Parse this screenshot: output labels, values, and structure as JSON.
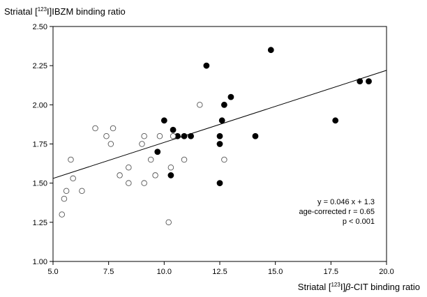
{
  "chart_data": {
    "type": "scatter",
    "ylabel_parts": {
      "pre": "Striatal [",
      "sup": "123",
      "post": "I]IBZM binding ratio"
    },
    "xlabel_parts": {
      "pre": "Striatal [",
      "sup": "123",
      "mid": "I]",
      "beta": "β",
      "post": "-CIT binding ratio"
    },
    "xlim": [
      5.0,
      20.0
    ],
    "ylim": [
      1.0,
      2.5
    ],
    "x_ticks": [
      "5.0",
      "7.5",
      "10.0",
      "12.5",
      "15.0",
      "17.5",
      "20.0"
    ],
    "y_ticks": [
      "1.00",
      "1.25",
      "1.50",
      "1.75",
      "2.00",
      "2.25",
      "2.50"
    ],
    "grid": false,
    "series": [
      {
        "marker": "filled",
        "points": [
          [
            10.0,
            1.9
          ],
          [
            10.4,
            1.84
          ],
          [
            9.7,
            1.7
          ],
          [
            10.3,
            1.55
          ],
          [
            10.6,
            1.8
          ],
          [
            10.9,
            1.8
          ],
          [
            11.2,
            1.8
          ],
          [
            11.9,
            2.25
          ],
          [
            12.5,
            1.8
          ],
          [
            12.5,
            1.75
          ],
          [
            12.6,
            1.9
          ],
          [
            12.7,
            2.0
          ],
          [
            13.0,
            2.05
          ],
          [
            12.5,
            1.5
          ],
          [
            14.1,
            1.8
          ],
          [
            14.8,
            2.35
          ],
          [
            17.7,
            1.9
          ],
          [
            18.8,
            2.15
          ],
          [
            19.2,
            2.15
          ]
        ]
      },
      {
        "marker": "open",
        "points": [
          [
            5.4,
            1.3
          ],
          [
            5.5,
            1.4
          ],
          [
            5.6,
            1.45
          ],
          [
            5.8,
            1.65
          ],
          [
            5.9,
            1.53
          ],
          [
            6.3,
            1.45
          ],
          [
            6.9,
            1.85
          ],
          [
            7.4,
            1.8
          ],
          [
            7.6,
            1.75
          ],
          [
            7.7,
            1.85
          ],
          [
            8.0,
            1.55
          ],
          [
            8.4,
            1.6
          ],
          [
            8.4,
            1.5
          ],
          [
            9.0,
            1.75
          ],
          [
            9.1,
            1.8
          ],
          [
            9.1,
            1.5
          ],
          [
            9.4,
            1.65
          ],
          [
            9.6,
            1.55
          ],
          [
            9.8,
            1.8
          ],
          [
            10.2,
            1.25
          ],
          [
            10.3,
            1.6
          ],
          [
            10.4,
            1.8
          ],
          [
            10.9,
            1.65
          ],
          [
            11.6,
            2.0
          ],
          [
            12.7,
            1.65
          ]
        ]
      }
    ],
    "regression": {
      "slope": 0.046,
      "intercept": 1.3
    },
    "annotation": [
      "y = 0.046 x + 1.3",
      "age-corrected r = 0.65",
      "p < 0.001"
    ]
  }
}
